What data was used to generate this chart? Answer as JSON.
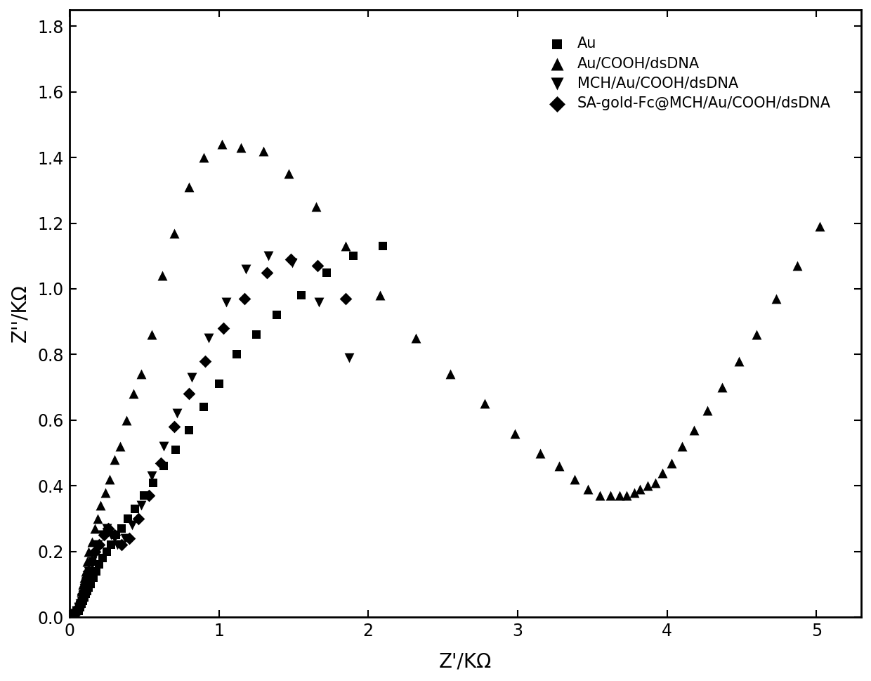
{
  "xlabel": "Z'/KΩ",
  "ylabel": "Z''/KΩ",
  "xlim": [
    0,
    5.3
  ],
  "ylim": [
    0,
    1.85
  ],
  "xticks": [
    0,
    1,
    2,
    3,
    4,
    5
  ],
  "yticks": [
    0.0,
    0.2,
    0.4,
    0.6,
    0.8,
    1.0,
    1.2,
    1.4,
    1.6,
    1.8
  ],
  "background_color": "#ffffff",
  "series": [
    {
      "label": "Au",
      "marker": "s",
      "markersize": 8,
      "x": [
        0.03,
        0.04,
        0.05,
        0.06,
        0.07,
        0.08,
        0.09,
        0.1,
        0.11,
        0.12,
        0.13,
        0.14,
        0.16,
        0.18,
        0.2,
        0.22,
        0.25,
        0.28,
        0.31,
        0.35,
        0.39,
        0.44,
        0.5,
        0.56,
        0.63,
        0.71,
        0.8,
        0.9,
        1.0,
        1.12,
        1.25,
        1.39,
        1.55,
        1.72,
        1.9,
        2.1
      ],
      "y": [
        0.01,
        0.01,
        0.02,
        0.02,
        0.03,
        0.04,
        0.05,
        0.06,
        0.07,
        0.08,
        0.09,
        0.1,
        0.12,
        0.14,
        0.16,
        0.18,
        0.2,
        0.22,
        0.25,
        0.27,
        0.3,
        0.33,
        0.37,
        0.41,
        0.46,
        0.51,
        0.57,
        0.64,
        0.71,
        0.8,
        0.86,
        0.92,
        0.98,
        1.05,
        1.1,
        1.13
      ]
    },
    {
      "label": "Au/COOH/dsDNA",
      "marker": "^",
      "markersize": 10,
      "x": [
        0.03,
        0.04,
        0.05,
        0.06,
        0.07,
        0.08,
        0.09,
        0.1,
        0.11,
        0.12,
        0.13,
        0.15,
        0.17,
        0.19,
        0.21,
        0.24,
        0.27,
        0.3,
        0.34,
        0.38,
        0.43,
        0.48,
        0.55,
        0.62,
        0.7,
        0.8,
        0.9,
        1.02,
        1.15,
        1.3,
        1.47,
        1.65,
        1.85,
        2.08,
        2.32,
        2.55,
        2.78,
        2.98,
        3.15,
        3.28,
        3.38,
        3.47,
        3.55,
        3.62,
        3.68,
        3.73,
        3.78,
        3.82,
        3.87,
        3.92,
        3.97,
        4.03,
        4.1,
        4.18,
        4.27,
        4.37,
        4.48,
        4.6,
        4.73,
        4.87,
        5.02
      ],
      "y": [
        0.01,
        0.02,
        0.03,
        0.04,
        0.06,
        0.08,
        0.1,
        0.12,
        0.14,
        0.17,
        0.2,
        0.23,
        0.27,
        0.3,
        0.34,
        0.38,
        0.42,
        0.48,
        0.52,
        0.6,
        0.68,
        0.74,
        0.86,
        1.04,
        1.17,
        1.31,
        1.4,
        1.44,
        1.43,
        1.42,
        1.35,
        1.25,
        1.13,
        0.98,
        0.85,
        0.74,
        0.65,
        0.56,
        0.5,
        0.46,
        0.42,
        0.39,
        0.37,
        0.37,
        0.37,
        0.37,
        0.38,
        0.39,
        0.4,
        0.41,
        0.44,
        0.47,
        0.52,
        0.57,
        0.63,
        0.7,
        0.78,
        0.86,
        0.97,
        1.07,
        1.19
      ]
    },
    {
      "label": "MCH/Au/COOH/dsDNA",
      "marker": "v",
      "markersize": 10,
      "x": [
        0.03,
        0.04,
        0.05,
        0.06,
        0.07,
        0.08,
        0.09,
        0.1,
        0.11,
        0.12,
        0.13,
        0.15,
        0.17,
        0.19,
        0.22,
        0.25,
        0.28,
        0.32,
        0.37,
        0.42,
        0.48,
        0.55,
        0.63,
        0.72,
        0.82,
        0.93,
        1.05,
        1.18,
        1.33,
        1.49,
        1.67,
        1.87
      ],
      "y": [
        0.01,
        0.01,
        0.02,
        0.03,
        0.04,
        0.05,
        0.07,
        0.08,
        0.1,
        0.12,
        0.14,
        0.17,
        0.19,
        0.22,
        0.25,
        0.27,
        0.25,
        0.22,
        0.24,
        0.28,
        0.34,
        0.43,
        0.52,
        0.62,
        0.73,
        0.85,
        0.96,
        1.06,
        1.1,
        1.08,
        0.96,
        0.79
      ]
    },
    {
      "label": "SA-gold-Fc@MCH/Au/COOH/dsDNA",
      "marker": "D",
      "markersize": 9,
      "x": [
        0.03,
        0.04,
        0.05,
        0.06,
        0.07,
        0.08,
        0.09,
        0.1,
        0.11,
        0.12,
        0.13,
        0.15,
        0.17,
        0.2,
        0.23,
        0.26,
        0.3,
        0.35,
        0.4,
        0.46,
        0.53,
        0.61,
        0.7,
        0.8,
        0.91,
        1.03,
        1.17,
        1.32,
        1.48,
        1.66,
        1.85
      ],
      "y": [
        0.01,
        0.01,
        0.02,
        0.03,
        0.04,
        0.05,
        0.07,
        0.08,
        0.1,
        0.12,
        0.14,
        0.17,
        0.2,
        0.22,
        0.25,
        0.27,
        0.25,
        0.22,
        0.24,
        0.3,
        0.37,
        0.47,
        0.58,
        0.68,
        0.78,
        0.88,
        0.97,
        1.05,
        1.09,
        1.07,
        0.97
      ]
    }
  ],
  "legend_fontsize": 15,
  "tick_fontsize": 17,
  "label_fontsize": 20
}
